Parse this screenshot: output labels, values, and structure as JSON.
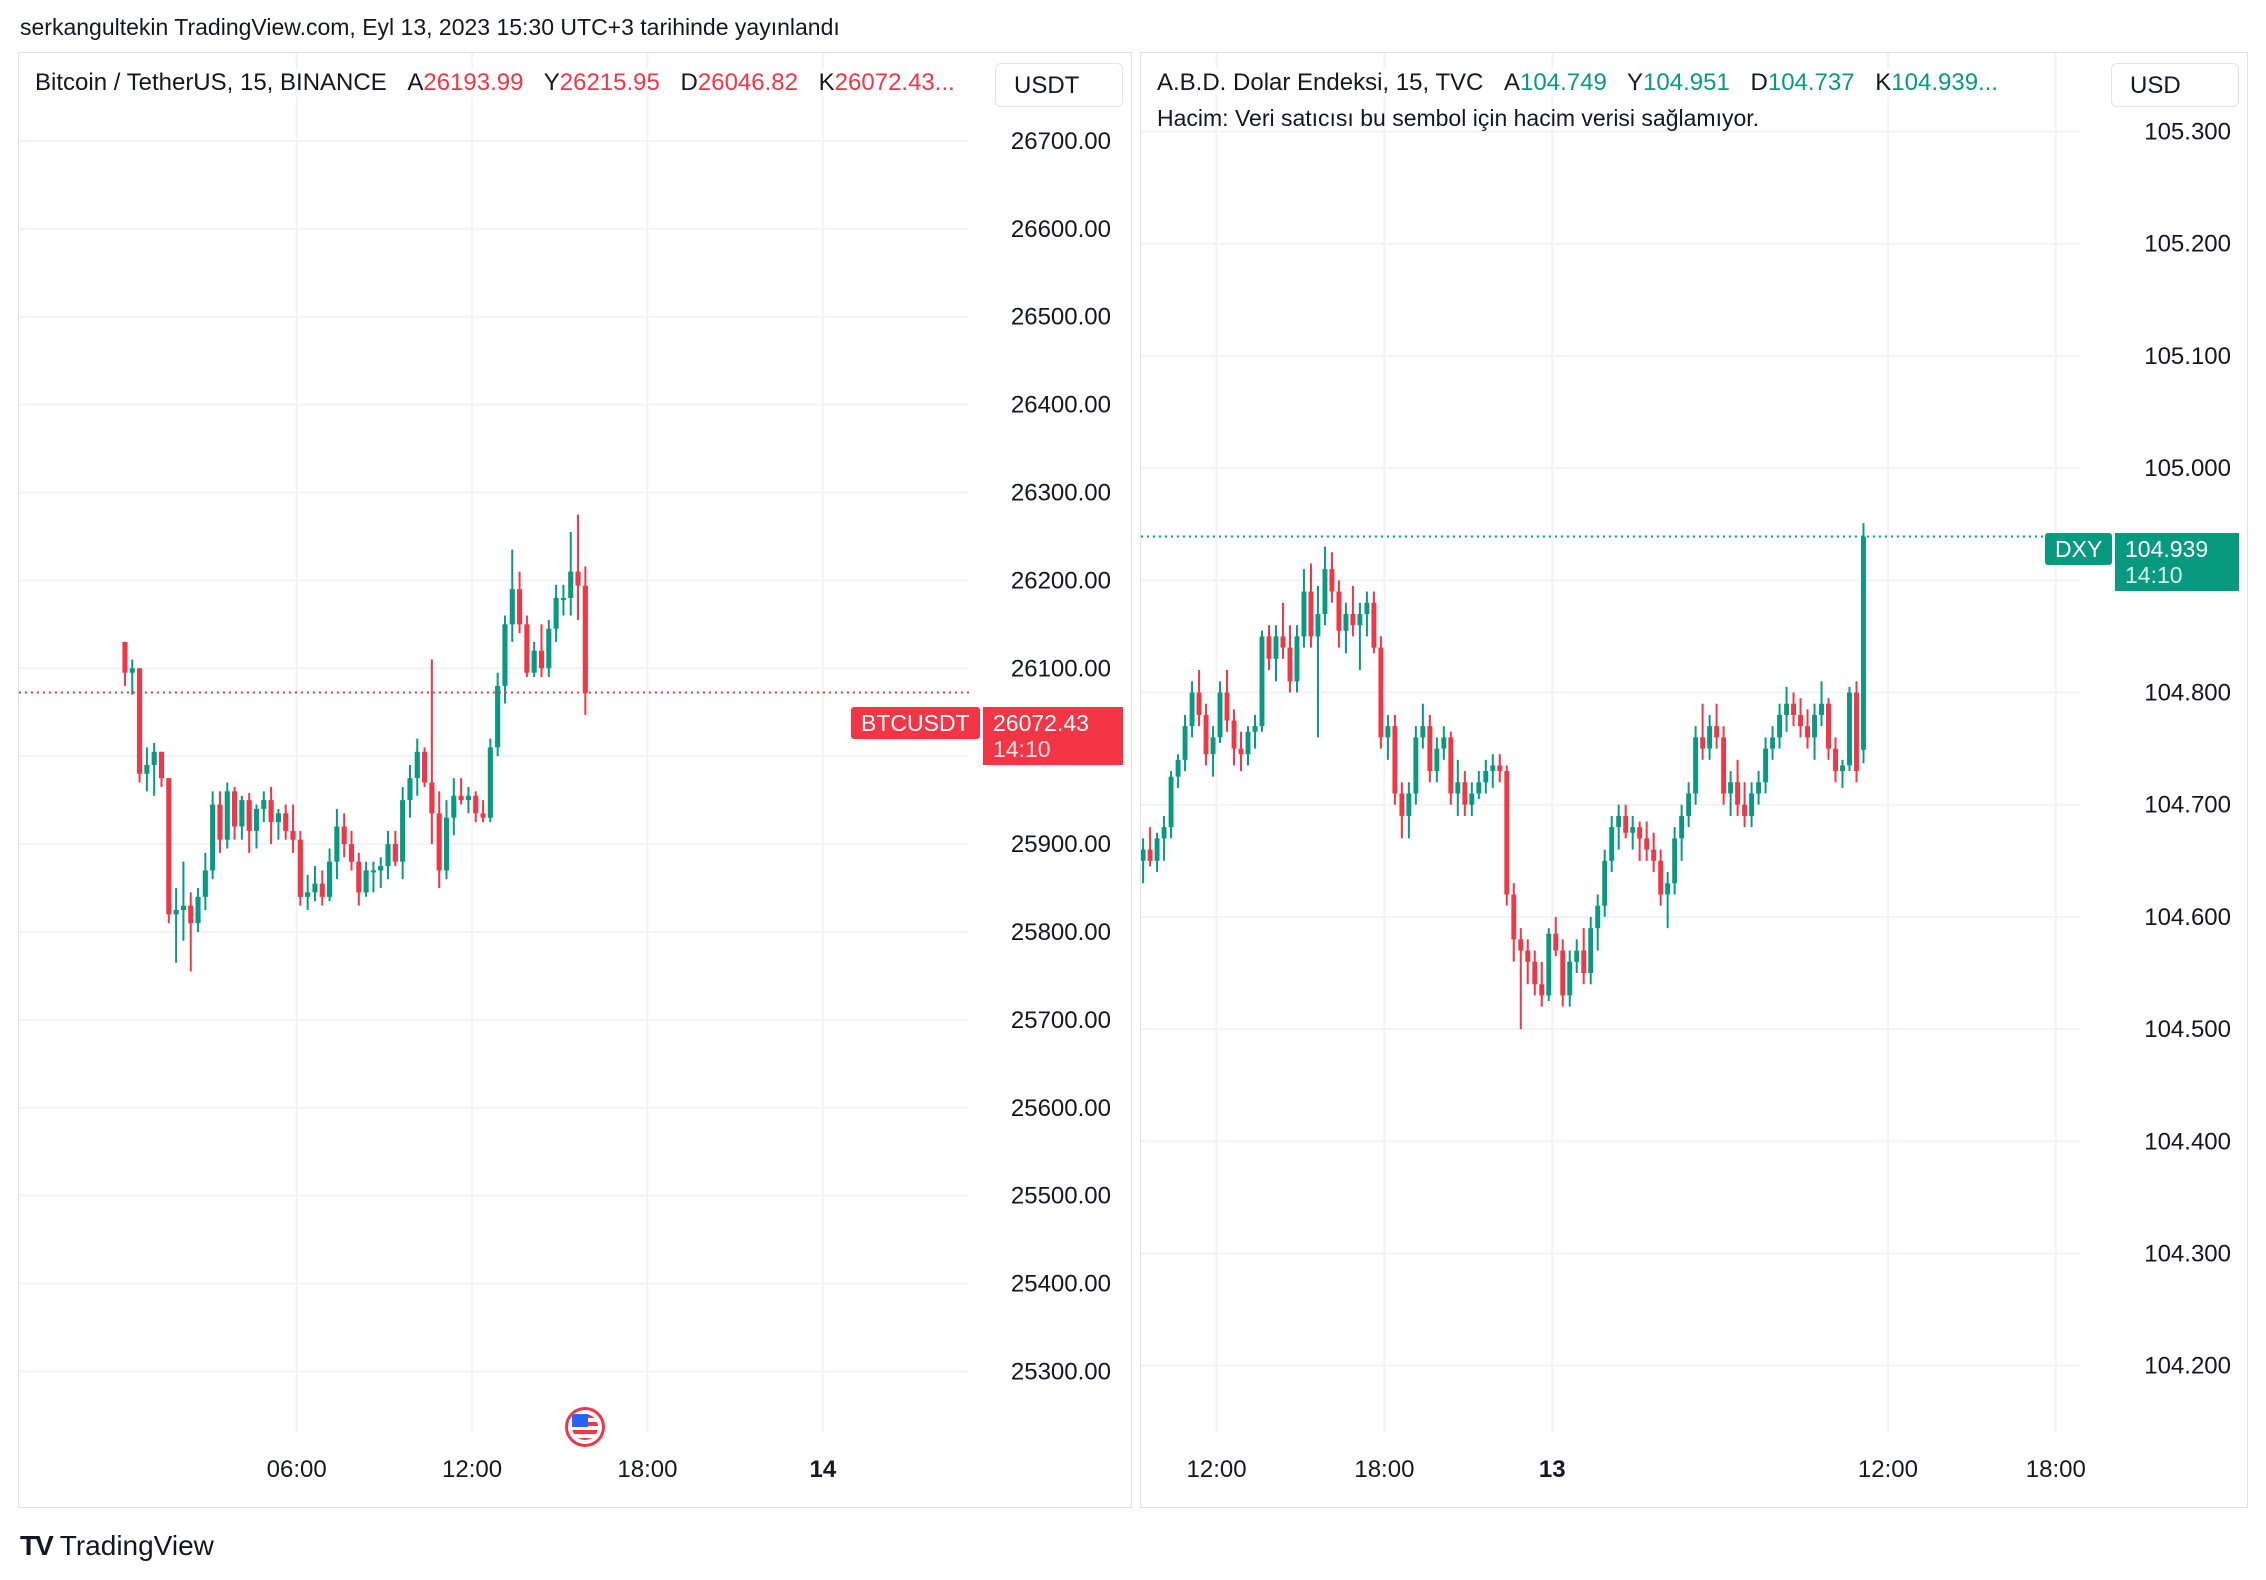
{
  "header": {
    "publish_line": "serkangultekin TradingView.com, Eyl 13, 2023 15:30 UTC+3 tarihinde yayınlandı"
  },
  "footer": {
    "brand": "TradingView",
    "logo_icon": "tradingview-logo-icon"
  },
  "colors": {
    "up": "#089981",
    "down": "#f23645",
    "grid": "#f0f3fa",
    "text": "#131722"
  },
  "panels": [
    {
      "title": "Bitcoin / TetherUS, 15, BINANCE",
      "ohlc": [
        {
          "label": "A",
          "value": "26193.99"
        },
        {
          "label": "Y",
          "value": "26215.95"
        },
        {
          "label": "D",
          "value": "26046.82"
        },
        {
          "label": "K",
          "value": "26072.43..."
        }
      ],
      "ohlc_color": "red",
      "currency": "USDT",
      "symbol_tag": "BTCUSDT",
      "last_price": "26072.43",
      "countdown": "14:10",
      "event_icon": "us-flag-icon"
    },
    {
      "title": "A.B.D. Dolar Endeksi, 15, TVC",
      "ohlc": [
        {
          "label": "A",
          "value": "104.749"
        },
        {
          "label": "Y",
          "value": "104.951"
        },
        {
          "label": "D",
          "value": "104.737"
        },
        {
          "label": "K",
          "value": "104.939..."
        }
      ],
      "ohlc_color": "green",
      "note": "Hacim: Veri satıcısı bu sembol için hacim verisi sağlamıyor.",
      "currency": "USD",
      "symbol_tag": "DXY",
      "last_price": "104.939",
      "countdown": "14:10"
    }
  ],
  "chart_data": [
    {
      "type": "candlestick",
      "symbol": "BTCUSDT",
      "interval": "15",
      "ylim": [
        25230,
        26800
      ],
      "yticks": [
        26700,
        26600,
        26500,
        26400,
        26300,
        26200,
        26100,
        26000,
        25900,
        25800,
        25700,
        25600,
        25500,
        25400,
        25300
      ],
      "ytick_labels": [
        "26700.00",
        "26600.00",
        "26500.00",
        "26400.00",
        "26300.00",
        "26200.00",
        "26100.00",
        "26000.00",
        "25900.00",
        "25800.00",
        "25700.00",
        "25600.00",
        "25500.00",
        "25400.00",
        "25300.00"
      ],
      "x_time_range": [
        "2023-09-12 20:30",
        "2023-09-14 05:00"
      ],
      "xticks": [
        {
          "time": "2023-09-13 06:00",
          "label": "06:00",
          "bold": false
        },
        {
          "time": "2023-09-13 12:00",
          "label": "12:00",
          "bold": false
        },
        {
          "time": "2023-09-13 18:00",
          "label": "18:00",
          "bold": false
        },
        {
          "time": "2023-09-14 00:00",
          "label": "14",
          "bold": true
        }
      ],
      "first_candle_time": "2023-09-13 00:00",
      "candle_minutes": 15,
      "last_price": 26072.43,
      "candles": [
        [
          26130,
          26130,
          26080,
          26095
        ],
        [
          26095,
          26110,
          26070,
          26100
        ],
        [
          26100,
          26100,
          25970,
          25980
        ],
        [
          25980,
          26010,
          25960,
          25990
        ],
        [
          25990,
          26015,
          25955,
          26005
        ],
        [
          26005,
          26005,
          25965,
          25975
        ],
        [
          25975,
          25975,
          25810,
          25820
        ],
        [
          25820,
          25850,
          25765,
          25825
        ],
        [
          25825,
          25880,
          25790,
          25830
        ],
        [
          25830,
          25845,
          25755,
          25810
        ],
        [
          25810,
          25850,
          25800,
          25840
        ],
        [
          25840,
          25890,
          25825,
          25870
        ],
        [
          25870,
          25960,
          25860,
          25945
        ],
        [
          25945,
          25960,
          25890,
          25905
        ],
        [
          25905,
          25970,
          25895,
          25960
        ],
        [
          25960,
          25965,
          25905,
          25920
        ],
        [
          25920,
          25955,
          25905,
          25950
        ],
        [
          25950,
          25958,
          25890,
          25915
        ],
        [
          25915,
          25945,
          25895,
          25940
        ],
        [
          25940,
          25960,
          25925,
          25950
        ],
        [
          25950,
          25965,
          25900,
          25925
        ],
        [
          25925,
          25940,
          25905,
          25935
        ],
        [
          25935,
          25945,
          25905,
          25915
        ],
        [
          25915,
          25945,
          25890,
          25905
        ],
        [
          25905,
          25915,
          25830,
          25840
        ],
        [
          25840,
          25865,
          25825,
          25845
        ],
        [
          25845,
          25875,
          25835,
          25855
        ],
        [
          25855,
          25870,
          25830,
          25840
        ],
        [
          25840,
          25895,
          25835,
          25880
        ],
        [
          25880,
          25940,
          25860,
          25920
        ],
        [
          25920,
          25935,
          25885,
          25900
        ],
        [
          25900,
          25915,
          25870,
          25880
        ],
        [
          25880,
          25890,
          25830,
          25845
        ],
        [
          25845,
          25880,
          25840,
          25870
        ],
        [
          25870,
          25880,
          25845,
          25870
        ],
        [
          25870,
          25885,
          25850,
          25875
        ],
        [
          25875,
          25915,
          25860,
          25900
        ],
        [
          25900,
          25915,
          25875,
          25880
        ],
        [
          25880,
          25965,
          25860,
          25950
        ],
        [
          25950,
          25990,
          25930,
          25975
        ],
        [
          25975,
          26020,
          25955,
          26005
        ],
        [
          26005,
          26010,
          25965,
          25970
        ],
        [
          25970,
          26110,
          25900,
          25935
        ],
        [
          25935,
          25960,
          25850,
          25870
        ],
        [
          25870,
          25950,
          25860,
          25930
        ],
        [
          25930,
          25975,
          25910,
          25955
        ],
        [
          25955,
          25975,
          25945,
          25950
        ],
        [
          25950,
          25965,
          25935,
          25955
        ],
        [
          25955,
          25960,
          25925,
          25935
        ],
        [
          25935,
          25950,
          25925,
          25930
        ],
        [
          25930,
          26020,
          25925,
          26010
        ],
        [
          26010,
          26095,
          26000,
          26080
        ],
        [
          26080,
          26160,
          26060,
          26150
        ],
        [
          26150,
          26235,
          26130,
          26190
        ],
        [
          26190,
          26210,
          26140,
          26150
        ],
        [
          26150,
          26160,
          26090,
          26095
        ],
        [
          26095,
          26130,
          26090,
          26120
        ],
        [
          26120,
          26150,
          26090,
          26100
        ],
        [
          26100,
          26155,
          26090,
          26145
        ],
        [
          26145,
          26195,
          26130,
          26180
        ],
        [
          26180,
          26195,
          26160,
          26180
        ],
        [
          26180,
          26255,
          26160,
          26210
        ],
        [
          26210,
          26275,
          26155,
          26194
        ],
        [
          26194,
          26216,
          26047,
          26072
        ]
      ]
    },
    {
      "type": "candlestick",
      "symbol": "DXY",
      "interval": "15",
      "ylim": [
        104.14,
        105.37
      ],
      "yticks": [
        105.3,
        105.2,
        105.1,
        105.0,
        104.9,
        104.8,
        104.7,
        104.6,
        104.5,
        104.4,
        104.3,
        104.2
      ],
      "ytick_labels": [
        "105.300",
        "105.200",
        "105.100",
        "105.000",
        "104.900",
        "104.800",
        "104.700",
        "104.600",
        "104.500",
        "104.400",
        "104.300",
        "104.200"
      ],
      "x_time_range": [
        "2023-09-12 09:18",
        "2023-09-13 18:54"
      ],
      "xticks": [
        {
          "time": "2023-09-12 12:00",
          "label": "12:00",
          "bold": false
        },
        {
          "time": "2023-09-12 18:00",
          "label": "18:00",
          "bold": false
        },
        {
          "time": "2023-09-13 00:00",
          "label": "13",
          "bold": true
        },
        {
          "time": "2023-09-13 12:00",
          "label": "12:00",
          "bold": false
        },
        {
          "time": "2023-09-13 18:00",
          "label": "18:00",
          "bold": false
        }
      ],
      "first_candle_time": "2023-09-12 09:15",
      "candle_minutes": 15,
      "last_price": 104.939,
      "candles": [
        [
          104.65,
          104.67,
          104.63,
          104.66
        ],
        [
          104.66,
          104.68,
          104.645,
          104.65
        ],
        [
          104.65,
          104.675,
          104.64,
          104.67
        ],
        [
          104.67,
          104.69,
          104.65,
          104.68
        ],
        [
          104.68,
          104.73,
          104.67,
          104.725
        ],
        [
          104.725,
          104.745,
          104.715,
          104.74
        ],
        [
          104.74,
          104.78,
          104.73,
          104.77
        ],
        [
          104.77,
          104.81,
          104.76,
          104.8
        ],
        [
          104.8,
          104.82,
          104.77,
          104.78
        ],
        [
          104.78,
          104.79,
          104.735,
          104.745
        ],
        [
          104.745,
          104.77,
          104.725,
          104.76
        ],
        [
          104.76,
          104.81,
          104.755,
          104.8
        ],
        [
          104.8,
          104.82,
          104.765,
          104.775
        ],
        [
          104.775,
          104.785,
          104.735,
          104.75
        ],
        [
          104.75,
          104.765,
          104.73,
          104.745
        ],
        [
          104.745,
          104.77,
          104.735,
          104.765
        ],
        [
          104.765,
          104.78,
          104.75,
          104.77
        ],
        [
          104.77,
          104.855,
          104.765,
          104.85
        ],
        [
          104.85,
          104.86,
          104.82,
          104.83
        ],
        [
          104.83,
          104.86,
          104.81,
          104.85
        ],
        [
          104.85,
          104.88,
          104.83,
          104.84
        ],
        [
          104.84,
          104.86,
          104.8,
          104.81
        ],
        [
          104.81,
          104.86,
          104.8,
          104.85
        ],
        [
          104.85,
          104.91,
          104.84,
          104.89
        ],
        [
          104.89,
          104.915,
          104.84,
          104.85
        ],
        [
          104.85,
          104.895,
          104.76,
          104.87
        ],
        [
          104.87,
          104.93,
          104.86,
          104.91
        ],
        [
          104.91,
          104.925,
          104.88,
          104.89
        ],
        [
          104.89,
          104.9,
          104.84,
          104.855
        ],
        [
          104.855,
          104.88,
          104.835,
          104.87
        ],
        [
          104.87,
          104.895,
          104.85,
          104.86
        ],
        [
          104.86,
          104.88,
          104.82,
          104.87
        ],
        [
          104.87,
          104.89,
          104.85,
          104.88
        ],
        [
          104.88,
          104.89,
          104.835,
          104.84
        ],
        [
          104.84,
          104.85,
          104.75,
          104.76
        ],
        [
          104.76,
          104.78,
          104.74,
          104.77
        ],
        [
          104.77,
          104.78,
          104.7,
          104.71
        ],
        [
          104.71,
          104.72,
          104.67,
          104.69
        ],
        [
          104.69,
          104.72,
          104.67,
          104.71
        ],
        [
          104.71,
          104.77,
          104.7,
          104.76
        ],
        [
          104.76,
          104.79,
          104.75,
          104.77
        ],
        [
          104.77,
          104.78,
          104.72,
          104.73
        ],
        [
          104.73,
          104.76,
          104.72,
          104.75
        ],
        [
          104.75,
          104.77,
          104.74,
          104.76
        ],
        [
          104.76,
          104.765,
          104.7,
          104.71
        ],
        [
          104.71,
          104.74,
          104.69,
          104.72
        ],
        [
          104.72,
          104.73,
          104.69,
          104.7
        ],
        [
          104.7,
          104.72,
          104.69,
          104.71
        ],
        [
          104.71,
          104.73,
          104.705,
          104.72
        ],
        [
          104.72,
          104.74,
          104.71,
          104.73
        ],
        [
          104.73,
          104.745,
          104.715,
          104.735
        ],
        [
          104.735,
          104.745,
          104.72,
          104.73
        ],
        [
          104.73,
          104.735,
          104.61,
          104.62
        ],
        [
          104.62,
          104.63,
          104.56,
          104.58
        ],
        [
          104.58,
          104.59,
          104.5,
          104.57
        ],
        [
          104.57,
          104.58,
          104.54,
          104.56
        ],
        [
          104.56,
          104.57,
          104.53,
          104.54
        ],
        [
          104.54,
          104.56,
          104.52,
          104.53
        ],
        [
          104.53,
          104.59,
          104.525,
          104.585
        ],
        [
          104.585,
          104.6,
          104.565,
          104.57
        ],
        [
          104.57,
          104.58,
          104.52,
          104.53
        ],
        [
          104.53,
          104.57,
          104.52,
          104.56
        ],
        [
          104.56,
          104.58,
          104.55,
          104.57
        ],
        [
          104.57,
          104.59,
          104.54,
          104.55
        ],
        [
          104.55,
          104.6,
          104.54,
          104.59
        ],
        [
          104.59,
          104.62,
          104.57,
          104.61
        ],
        [
          104.61,
          104.66,
          104.6,
          104.65
        ],
        [
          104.65,
          104.69,
          104.64,
          104.68
        ],
        [
          104.68,
          104.7,
          104.66,
          104.69
        ],
        [
          104.69,
          104.7,
          104.67,
          104.675
        ],
        [
          104.675,
          104.69,
          104.66,
          104.68
        ],
        [
          104.68,
          104.685,
          104.65,
          104.67
        ],
        [
          104.67,
          104.685,
          104.65,
          104.66
        ],
        [
          104.66,
          104.675,
          104.64,
          104.65
        ],
        [
          104.65,
          104.66,
          104.61,
          104.62
        ],
        [
          104.62,
          104.64,
          104.59,
          104.63
        ],
        [
          104.63,
          104.68,
          104.62,
          104.67
        ],
        [
          104.67,
          104.7,
          104.65,
          104.69
        ],
        [
          104.69,
          104.72,
          104.68,
          104.71
        ],
        [
          104.71,
          104.77,
          104.7,
          104.76
        ],
        [
          104.76,
          104.79,
          104.74,
          104.75
        ],
        [
          104.75,
          104.78,
          104.74,
          104.77
        ],
        [
          104.77,
          104.79,
          104.75,
          104.76
        ],
        [
          104.76,
          104.77,
          104.7,
          104.71
        ],
        [
          104.71,
          104.73,
          104.69,
          104.72
        ],
        [
          104.72,
          104.74,
          104.69,
          104.7
        ],
        [
          104.7,
          104.72,
          104.68,
          104.69
        ],
        [
          104.69,
          104.72,
          104.68,
          104.71
        ],
        [
          104.71,
          104.73,
          104.7,
          104.72
        ],
        [
          104.72,
          104.76,
          104.71,
          104.75
        ],
        [
          104.75,
          104.77,
          104.74,
          104.76
        ],
        [
          104.76,
          104.79,
          104.75,
          104.78
        ],
        [
          104.78,
          104.805,
          104.765,
          104.79
        ],
        [
          104.79,
          104.8,
          104.77,
          104.78
        ],
        [
          104.78,
          104.795,
          104.76,
          104.77
        ],
        [
          104.77,
          104.785,
          104.75,
          104.76
        ],
        [
          104.76,
          104.79,
          104.74,
          104.78
        ],
        [
          104.78,
          104.81,
          104.77,
          104.79
        ],
        [
          104.79,
          104.795,
          104.74,
          104.75
        ],
        [
          104.75,
          104.76,
          104.72,
          104.73
        ],
        [
          104.73,
          104.74,
          104.715,
          104.735
        ],
        [
          104.735,
          104.805,
          104.73,
          104.8
        ],
        [
          104.8,
          104.81,
          104.72,
          104.73
        ],
        [
          104.749,
          104.951,
          104.737,
          104.939
        ]
      ]
    }
  ]
}
